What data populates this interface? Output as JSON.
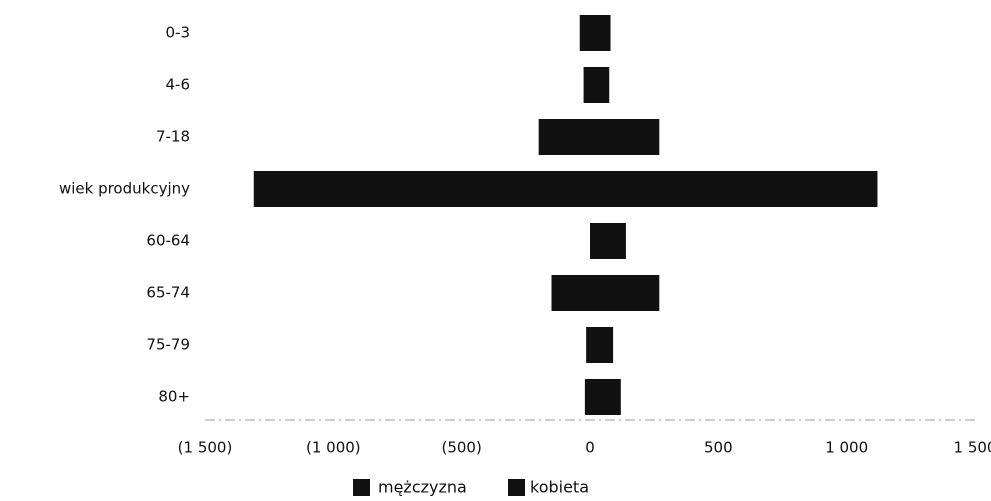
{
  "chart_data": {
    "type": "bar",
    "orientation": "horizontal",
    "stacking": "diverging",
    "categories": [
      "0-3",
      "4-6",
      "7-18",
      "wiek produkcyjny",
      "60-64",
      "65-74",
      "75-79",
      "80+"
    ],
    "series": [
      {
        "name": "mężczyzna",
        "values": [
          -40,
          -25,
          -200,
          -1310,
          30,
          -150,
          -15,
          -20
        ]
      },
      {
        "name": "kobieta",
        "values": [
          80,
          75,
          270,
          1120,
          140,
          270,
          90,
          120
        ]
      }
    ],
    "xlim": [
      -1500,
      1500
    ],
    "x_ticks": [
      -1500,
      -1000,
      -500,
      0,
      500,
      1000,
      1500
    ],
    "x_tick_labels": [
      "(1 500)",
      "(1 000)",
      "(500)",
      "0",
      "500",
      "1 000",
      "1 500"
    ],
    "legend_position": "bottom",
    "grid": false,
    "colors": {
      "mężczyzna": "#111111",
      "kobieta": "#111111"
    }
  }
}
